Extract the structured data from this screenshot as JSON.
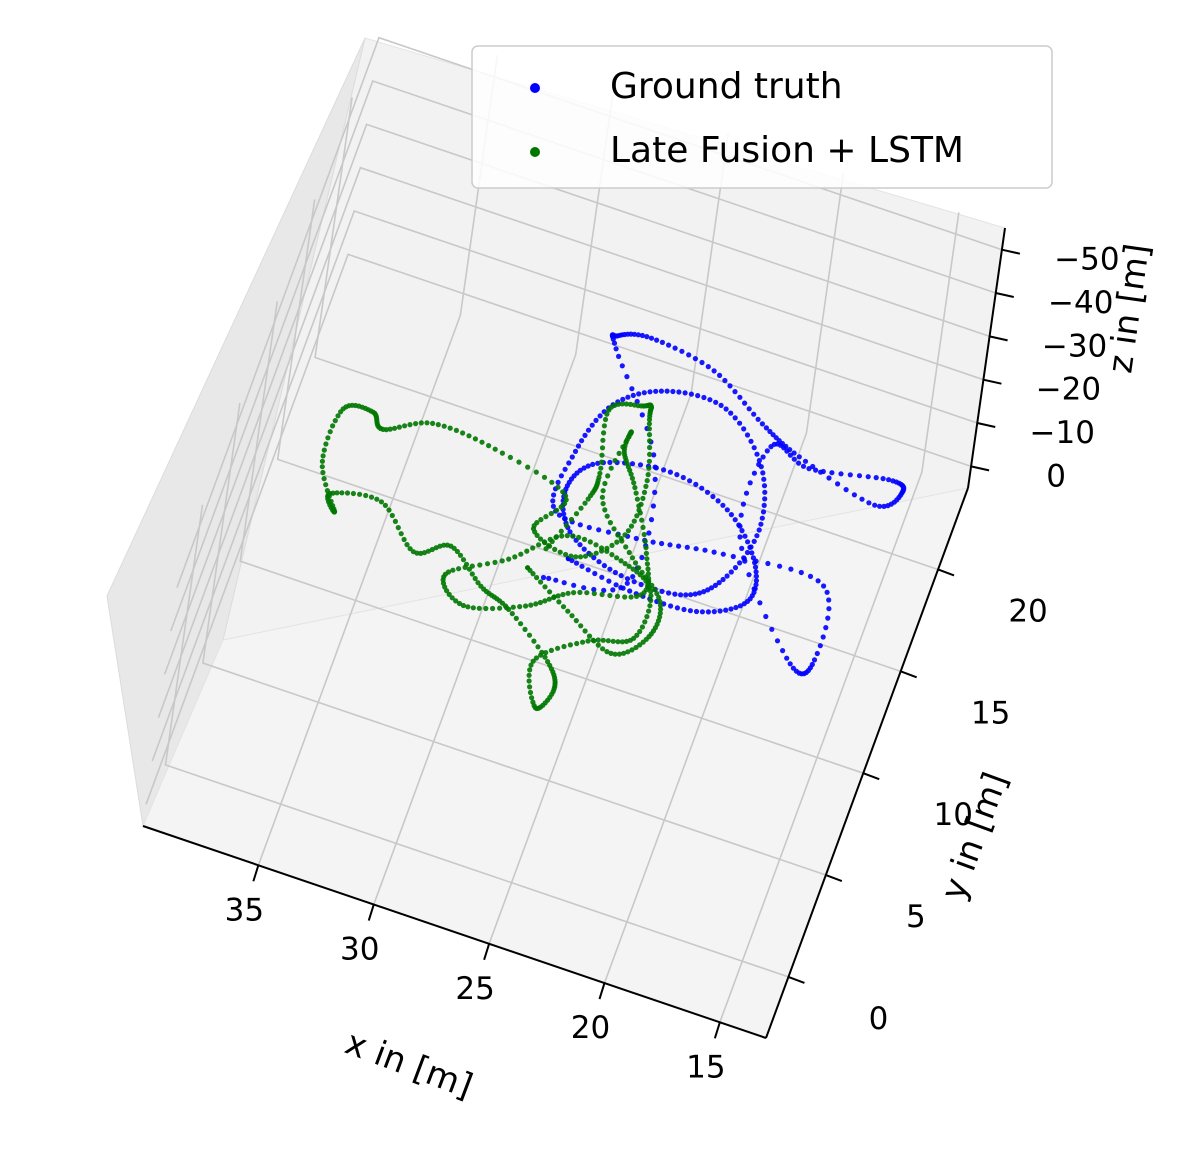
{
  "chart_data": {
    "type": "scatter",
    "projection": "3d",
    "title": "",
    "xlabel": "x in [m]",
    "ylabel": "y in [m]",
    "zlabel": "z in [m]",
    "x_ticks": [
      "35",
      "30",
      "25",
      "20",
      "15"
    ],
    "y_ticks": [
      "0",
      "5",
      "10",
      "15",
      "20"
    ],
    "z_ticks": [
      "−50",
      "−40",
      "−30",
      "−20",
      "−10",
      "0"
    ],
    "xlim": [
      13,
      40
    ],
    "ylim": [
      -3,
      24
    ],
    "zlim": [
      5,
      -55
    ],
    "grid": true,
    "legend_position": "top-right",
    "series": [
      {
        "name": "Ground truth",
        "color": "#0000ff",
        "x": [
          27.9,
          24.4,
          24.6,
          27.4,
          27.4,
          26.0,
          23.2,
          20.7,
          19.0,
          15.6,
          14.9,
          15.8,
          19.1,
          20.8,
          20.6,
          17.2,
          16.2,
          16.8,
          21.0,
          24.5,
          28.0,
          28.0,
          27.1,
          25.1,
          22.5,
          20.4,
          19.7,
          20.5,
          22.0,
          24.9,
          27.3,
          28.1,
          27.2,
          24.2,
          21.4,
          19.6,
          19.4,
          21.3,
          24.2,
          27.1
        ],
        "y": [
          12.8,
          12.8,
          16.3,
          18.9,
          18.9,
          18.9,
          18.8,
          17.8,
          17.9,
          17.9,
          19.9,
          21.2,
          20.9,
          20.9,
          15.9,
          11.9,
          12.4,
          15.6,
          14.9,
          13.9,
          13.9,
          16.4,
          18.4,
          19.2,
          18.9,
          17.3,
          15.1,
          13.0,
          12.1,
          12.5,
          14.0,
          16.0,
          17.4,
          17.7,
          16.5,
          14.6,
          13.2,
          12.4,
          12.5,
          13.4
        ],
        "z": [
          0,
          -5,
          -15,
          -25,
          -28,
          -30,
          -28,
          -25,
          -20,
          -15,
          -10,
          -5,
          -3,
          -5,
          -8,
          -5,
          -3,
          -5,
          -8,
          -10,
          -10,
          -12,
          -15,
          -18,
          -20,
          -18,
          -15,
          -12,
          -10,
          -8,
          -6,
          -5,
          -6,
          -8,
          -10,
          -10,
          -8,
          -6,
          -5,
          -3
        ]
      },
      {
        "name": "Late Fusion + LSTM",
        "color": "#007700",
        "x": [
          28.1,
          27.1,
          26.9,
          27.3,
          25.9,
          25.5,
          25.3,
          24.6,
          24.8,
          26.5,
          28.6,
          27.9,
          31.2,
          33.9,
          35.8,
          36.5,
          37.7,
          37.8,
          36.7,
          37.2,
          35.1,
          33.2,
          31.8,
          30.0,
          28.6,
          26.4,
          25.8,
          26.3,
          27.0,
          25.1,
          23.3,
          23.2,
          24.7,
          27.2,
          29.2,
          31.5,
          30.4,
          28.0,
          26.3,
          23.6,
          23.9,
          25.2,
          26.0,
          25.9,
          26.2,
          24.3,
          22.7,
          22.7,
          24.0,
          26.3,
          28.5
        ],
        "y": [
          13.5,
          15.9,
          16.6,
          18.7,
          18.8,
          18.3,
          17.3,
          15.0,
          12.9,
          11.8,
          12.8,
          15.1,
          15.7,
          15.5,
          14.9,
          15.9,
          15.6,
          13.2,
          11.6,
          12.7,
          13.1,
          11.6,
          12.2,
          10.5,
          9.9,
          8.4,
          7.5,
          6.6,
          8.4,
          9.7,
          10.1,
          11.8,
          12.3,
          13.0,
          11.5,
          10.3,
          9.4,
          10.3,
          11.4,
          11.9,
          13.4,
          15.7,
          16.5,
          16.8,
          14.2,
          12.6,
          11.5,
          10.2,
          9.3,
          10.7,
          12.2
        ],
        "z": [
          -3,
          -5,
          -8,
          -12,
          -15,
          -18,
          -20,
          -18,
          -15,
          -12,
          -10,
          -8,
          -10,
          -12,
          -10,
          -8,
          -8,
          -7,
          -5,
          -3,
          -3,
          -2,
          -3,
          -5,
          -5,
          -4,
          -3,
          -2,
          -3,
          -5,
          -7,
          -10,
          -12,
          -10,
          -8,
          -6,
          -5,
          -5,
          -6,
          -8,
          -10,
          -12,
          -15,
          -18,
          -15,
          -12,
          -10,
          -8,
          -6,
          -5,
          -4
        ]
      }
    ]
  }
}
